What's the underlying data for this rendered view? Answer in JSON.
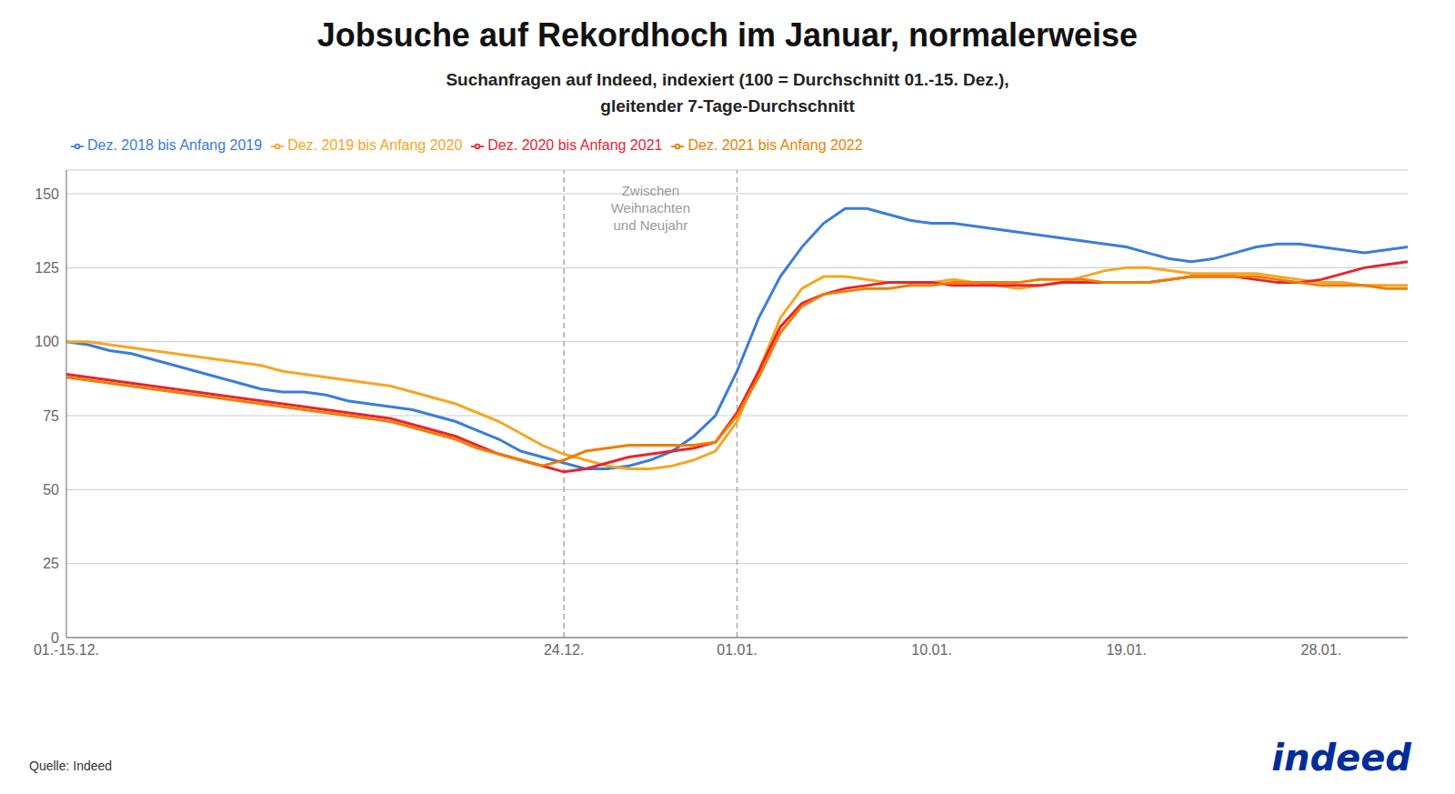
{
  "chart_data": {
    "type": "line",
    "title": "Jobsuche auf Rekordhoch im Januar, normalerweise",
    "subtitle": "Suchanfragen auf Indeed, indexiert (100 = Durchschnitt 01.-15. Dez.),\ngleitender 7-Tage-Durchschnitt",
    "categories": [
      "01.-15.12.",
      null,
      null,
      null,
      null,
      null,
      null,
      null,
      null,
      null,
      null,
      null,
      null,
      null,
      null,
      null,
      null,
      null,
      null,
      null,
      null,
      null,
      null,
      "24.12.",
      null,
      null,
      null,
      null,
      null,
      null,
      null,
      "01.01.",
      null,
      null,
      null,
      null,
      null,
      null,
      null,
      null,
      "10.01.",
      null,
      null,
      null,
      null,
      null,
      null,
      null,
      null,
      "19.01.",
      null,
      null,
      null,
      null,
      null,
      null,
      null,
      null,
      "28.01.",
      null,
      null,
      null,
      null
    ],
    "series": [
      {
        "name": "Dez. 2018 bis Anfang 2019",
        "color": "#3a7dd9",
        "values": [
          100,
          99,
          97,
          96,
          94,
          92,
          90,
          88,
          86,
          84,
          83,
          83,
          82,
          80,
          79,
          78,
          77,
          75,
          73,
          70,
          67,
          63,
          61,
          59,
          57,
          57,
          58,
          60,
          63,
          68,
          75,
          90,
          108,
          122,
          132,
          140,
          145,
          145,
          143,
          141,
          140,
          140,
          139,
          138,
          137,
          136,
          135,
          134,
          133,
          132,
          130,
          128,
          127,
          128,
          130,
          132,
          133,
          133,
          132,
          131,
          130,
          131,
          132
        ]
      },
      {
        "name": "Dez. 2019 bis Anfang 2020",
        "color": "#f5a623",
        "values": [
          100,
          100,
          99,
          98,
          97,
          96,
          95,
          94,
          93,
          92,
          90,
          89,
          88,
          87,
          86,
          85,
          83,
          81,
          79,
          76,
          73,
          69,
          65,
          62,
          60,
          58,
          57,
          57,
          58,
          60,
          63,
          73,
          90,
          108,
          118,
          122,
          122,
          121,
          120,
          120,
          120,
          121,
          120,
          119,
          118,
          119,
          120,
          122,
          124,
          125,
          125,
          124,
          123,
          123,
          123,
          123,
          122,
          121,
          120,
          120,
          119,
          119,
          119
        ]
      },
      {
        "name": "Dez. 2020 bis Anfang 2021",
        "color": "#e8242e",
        "values": [
          89,
          88,
          87,
          86,
          85,
          84,
          83,
          82,
          81,
          80,
          79,
          78,
          77,
          76,
          75,
          74,
          72,
          70,
          68,
          65,
          62,
          60,
          58,
          56,
          57,
          59,
          61,
          62,
          63,
          64,
          66,
          76,
          90,
          105,
          113,
          116,
          118,
          119,
          120,
          120,
          120,
          119,
          119,
          119,
          119,
          119,
          120,
          120,
          120,
          120,
          120,
          121,
          122,
          122,
          122,
          121,
          120,
          120,
          121,
          123,
          125,
          126,
          127
        ]
      },
      {
        "name": "Dez. 2021 bis Anfang 2022",
        "color": "#f07d00",
        "values": [
          88,
          87,
          86,
          85,
          84,
          83,
          82,
          81,
          80,
          79,
          78,
          77,
          76,
          75,
          74,
          73,
          71,
          69,
          67,
          64,
          62,
          60,
          58,
          60,
          63,
          64,
          65,
          65,
          65,
          65,
          66,
          75,
          88,
          103,
          112,
          116,
          117,
          118,
          118,
          119,
          119,
          120,
          120,
          120,
          120,
          121,
          121,
          121,
          120,
          120,
          120,
          121,
          122,
          122,
          122,
          122,
          121,
          120,
          119,
          119,
          119,
          118,
          118
        ]
      }
    ],
    "ylim": [
      0,
      158
    ],
    "yticks": [
      0,
      25,
      50,
      75,
      100,
      125,
      150
    ],
    "grid": true,
    "legend": "upper left",
    "vlines": [
      "24.12.",
      "01.01."
    ],
    "annotation": "Zwischen\nWeihnachten\nund Neujahr",
    "source": "Quelle: Indeed",
    "logo": "indeed"
  }
}
